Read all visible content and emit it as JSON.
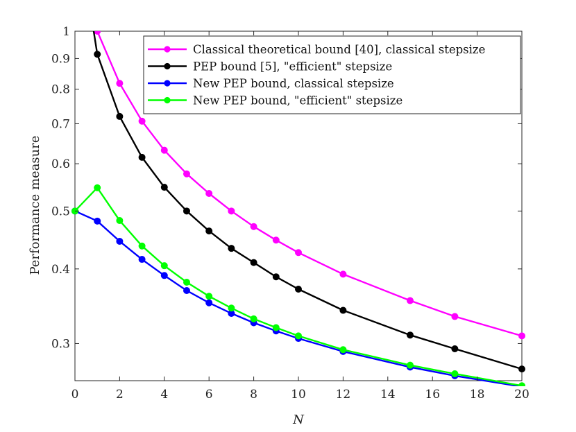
{
  "chart_data": {
    "type": "line",
    "title": "",
    "xlabel": "N",
    "ylabel": "Performance measure",
    "xlim": [
      0,
      20
    ],
    "ylim": [
      0.26,
      1.0
    ],
    "yscale": "log",
    "grid": false,
    "legend_position": "top-right",
    "xticks": [
      0,
      2,
      4,
      6,
      8,
      10,
      12,
      14,
      16,
      18,
      20
    ],
    "xtick_labels": [
      "0",
      "2",
      "4",
      "6",
      "8",
      "10",
      "12",
      "14",
      "16",
      "18",
      "20"
    ],
    "yticks": [
      0.3,
      0.4,
      0.5,
      0.6,
      0.7,
      0.8,
      0.9,
      1.0
    ],
    "ytick_labels": [
      "0.3",
      "0.4",
      "0.5",
      "0.6",
      "0.7",
      "0.8",
      "0.9",
      "1"
    ],
    "series": [
      {
        "name": "Classical theoretical bound [40], classical stepsize",
        "color": "#ff00ff",
        "x": [
          1,
          2,
          3,
          4,
          5,
          6,
          7,
          8,
          9,
          10,
          12,
          15,
          17,
          20
        ],
        "values": [
          1.0,
          0.818,
          0.707,
          0.632,
          0.577,
          0.535,
          0.5,
          0.471,
          0.447,
          0.426,
          0.392,
          0.354,
          0.333,
          0.309
        ]
      },
      {
        "name": "PEP bound [5], \"efficient\" stepsize",
        "color": "#000000",
        "x": [
          0.84,
          1,
          2,
          3,
          4,
          5,
          6,
          7,
          8,
          9,
          10,
          12,
          15,
          17,
          20
        ],
        "values": [
          1.0,
          0.915,
          0.72,
          0.615,
          0.548,
          0.5,
          0.463,
          0.433,
          0.41,
          0.388,
          0.37,
          0.341,
          0.31,
          0.294,
          0.272
        ]
      },
      {
        "name": "New PEP bound, classical stepsize",
        "color": "#0000ff",
        "x": [
          0,
          1,
          2,
          3,
          4,
          5,
          6,
          7,
          8,
          9,
          10,
          12,
          15,
          17,
          20
        ],
        "values": [
          0.5,
          0.481,
          0.445,
          0.415,
          0.39,
          0.368,
          0.351,
          0.337,
          0.325,
          0.315,
          0.306,
          0.291,
          0.274,
          0.265,
          0.254
        ]
      },
      {
        "name": "New PEP bound, \"efficient\" stepsize",
        "color": "#00ff00",
        "x": [
          0,
          1,
          2,
          3,
          4,
          5,
          6,
          7,
          8,
          9,
          10,
          12,
          15,
          17,
          20
        ],
        "values": [
          0.5,
          0.547,
          0.482,
          0.437,
          0.405,
          0.38,
          0.36,
          0.344,
          0.33,
          0.319,
          0.309,
          0.293,
          0.276,
          0.267,
          0.255
        ]
      }
    ]
  }
}
